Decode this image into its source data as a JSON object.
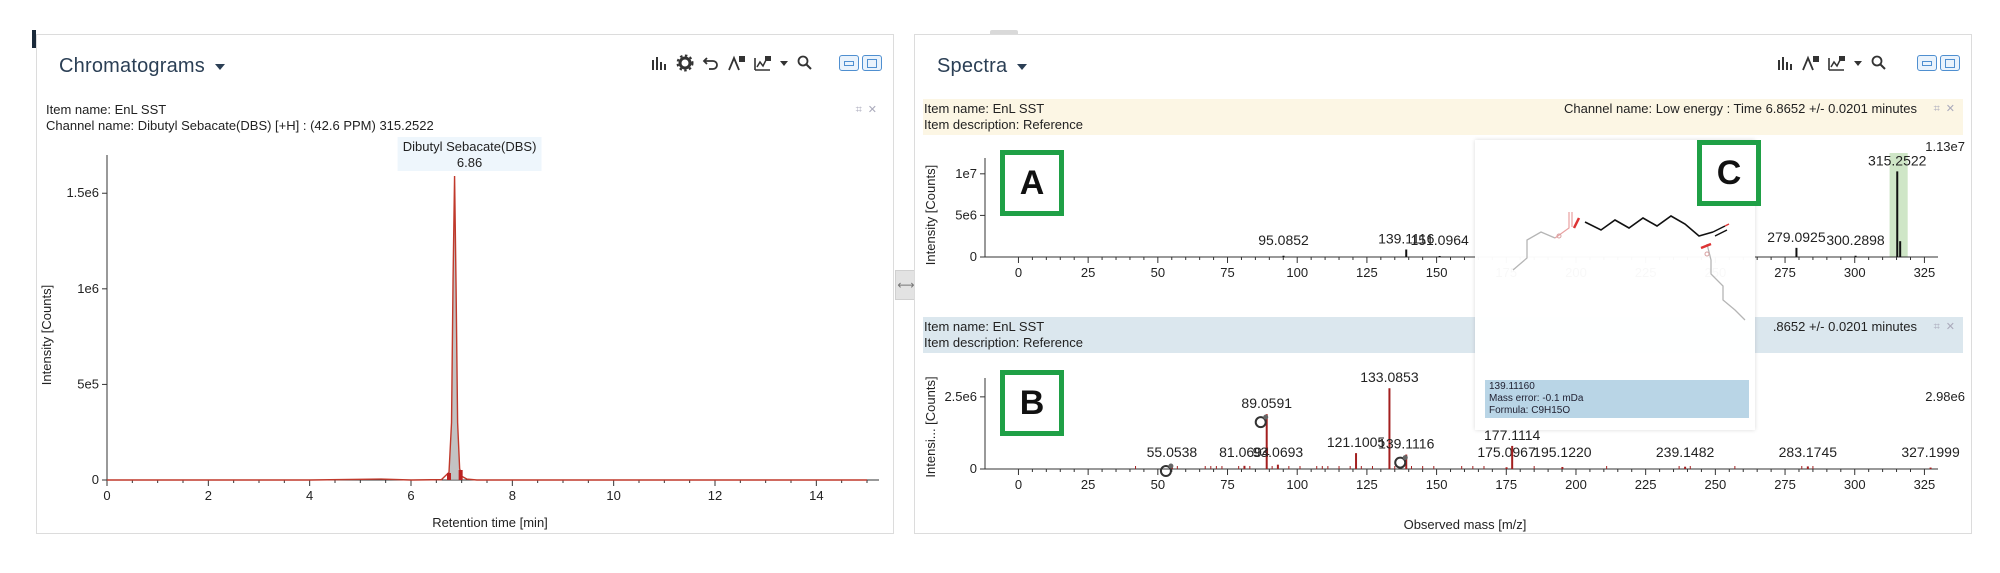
{
  "chromatograms": {
    "title": "Chromatograms",
    "item_name": "Item name: EnL SST",
    "channel_name": "Channel name: Dibutyl Sebacate(DBS) [+H] : (42.6 PPM) 315.2522",
    "peak_label": {
      "name": "Dibutyl Sebacate(DBS)",
      "rt": "6.86"
    },
    "chart_data": {
      "type": "line",
      "xlabel": "Retention time [min]",
      "ylabel": "Intensity [Counts]",
      "xlim": [
        0,
        15
      ],
      "ylim": [
        0,
        1700000
      ],
      "x_ticks": [
        "0",
        "2",
        "4",
        "6",
        "8",
        "10",
        "12",
        "14"
      ],
      "y_ticks": [
        {
          "label": "0",
          "value": 0
        },
        {
          "label": "5e5",
          "value": 500000
        },
        {
          "label": "1e6",
          "value": 1000000
        },
        {
          "label": "1.5e6",
          "value": 1500000
        }
      ],
      "series": [
        {
          "x": [
            0,
            2,
            4,
            5.4,
            6.0,
            6.6,
            6.75,
            6.8,
            6.83,
            6.86,
            6.89,
            6.92,
            6.96,
            7.0,
            7.1,
            7.3,
            8,
            10,
            12,
            15
          ],
          "y": [
            0,
            0,
            0,
            5000,
            0,
            2000,
            40000,
            300000,
            1050000,
            1590000,
            1000000,
            300000,
            60000,
            20000,
            5000,
            0,
            0,
            0,
            0,
            0
          ]
        }
      ]
    }
  },
  "spectra": {
    "title": "Spectra",
    "top": {
      "item_name": "Item name: EnL SST",
      "item_description": "Item description: Reference",
      "channel_name": "Channel name: Low energy : Time 6.8652 +/- 0.0201 minutes",
      "label": "A",
      "max_label": "1.13e7",
      "chart_data": {
        "type": "bar",
        "ylabel": "Intensity [Counts]",
        "xlim": [
          -12,
          327
        ],
        "ylim": [
          0,
          11300000
        ],
        "x_ticks": [
          "0",
          "25",
          "50",
          "75",
          "100",
          "125",
          "150",
          "175",
          "200",
          "225",
          "250",
          "275",
          "300",
          "325"
        ],
        "y_ticks": [
          {
            "label": "0",
            "value": 0
          },
          {
            "label": "5e6",
            "value": 5000000
          },
          {
            "label": "1e7",
            "value": 10000000
          }
        ],
        "peaks": [
          {
            "mz": 95.0852,
            "intensity": 150000,
            "label": "95.0852"
          },
          {
            "mz": 139.1116,
            "intensity": 900000,
            "label": "139.1116"
          },
          {
            "mz": 151.0964,
            "intensity": 120000,
            "label": "151.0964"
          },
          {
            "mz": 279.0925,
            "intensity": 1100000,
            "label": "279.0925"
          },
          {
            "mz": 300.2898,
            "intensity": 150000,
            "label": "300.2898"
          },
          {
            "mz": 315.2522,
            "intensity": 10300000,
            "label": "315.2522"
          },
          {
            "mz": 316.3,
            "intensity": 1900000,
            "label": ""
          }
        ],
        "highlight_range": [
          312.5,
          319
        ]
      }
    },
    "bottom": {
      "item_name": "Item name: EnL SST",
      "item_description": "Item description: Reference",
      "channel_name_partial": ".8652 +/- 0.0201 minutes",
      "label": "B",
      "max_label": "2.98e6",
      "chart_data": {
        "type": "bar",
        "xlabel": "Observed mass [m/z]",
        "ylabel": "Intensi... [Counts]",
        "xlim": [
          -12,
          327
        ],
        "ylim": [
          0,
          2980000
        ],
        "x_ticks": [
          "0",
          "25",
          "50",
          "75",
          "100",
          "125",
          "150",
          "175",
          "200",
          "225",
          "250",
          "275",
          "300",
          "325"
        ],
        "y_ticks": [
          {
            "label": "0",
            "value": 0
          },
          {
            "label": "2.5e6",
            "value": 2500000
          }
        ],
        "peaks": [
          {
            "mz": 55.0538,
            "intensity": 80000,
            "label": "55.0538",
            "icon": true
          },
          {
            "mz": 81.0694,
            "intensity": 110000,
            "label": "81.0694"
          },
          {
            "mz": 89.0591,
            "intensity": 1900000,
            "label": "89.0591",
            "icon": true
          },
          {
            "mz": 93.0693,
            "intensity": 150000,
            "label": "93.0693"
          },
          {
            "mz": 121.1005,
            "intensity": 550000,
            "label": "121.1005"
          },
          {
            "mz": 133.0853,
            "intensity": 2800000,
            "label": "133.0853"
          },
          {
            "mz": 139.1116,
            "intensity": 500000,
            "label": "139.1116",
            "icon": true
          },
          {
            "mz": 175.0967,
            "intensity": 60000,
            "label": "175.0967"
          },
          {
            "mz": 177.1114,
            "intensity": 800000,
            "label": "177.1114"
          },
          {
            "mz": 195.122,
            "intensity": 70000,
            "label": "195.1220"
          },
          {
            "mz": 239.1482,
            "intensity": 80000,
            "label": "239.1482"
          },
          {
            "mz": 283.1745,
            "intensity": 90000,
            "label": "283.1745"
          },
          {
            "mz": 327.1999,
            "intensity": 50000,
            "label": "327.1999"
          }
        ]
      }
    },
    "popup": {
      "label": "C",
      "mass": "139.11160",
      "mass_error": "Mass error: -0.1 mDa",
      "formula": "Formula: C9H15O"
    }
  },
  "colors": {
    "trace": "#c0392b",
    "peak_fill": "#aaaaaa",
    "highlight": "#cfe6c7",
    "label_border": "#1fa046"
  }
}
